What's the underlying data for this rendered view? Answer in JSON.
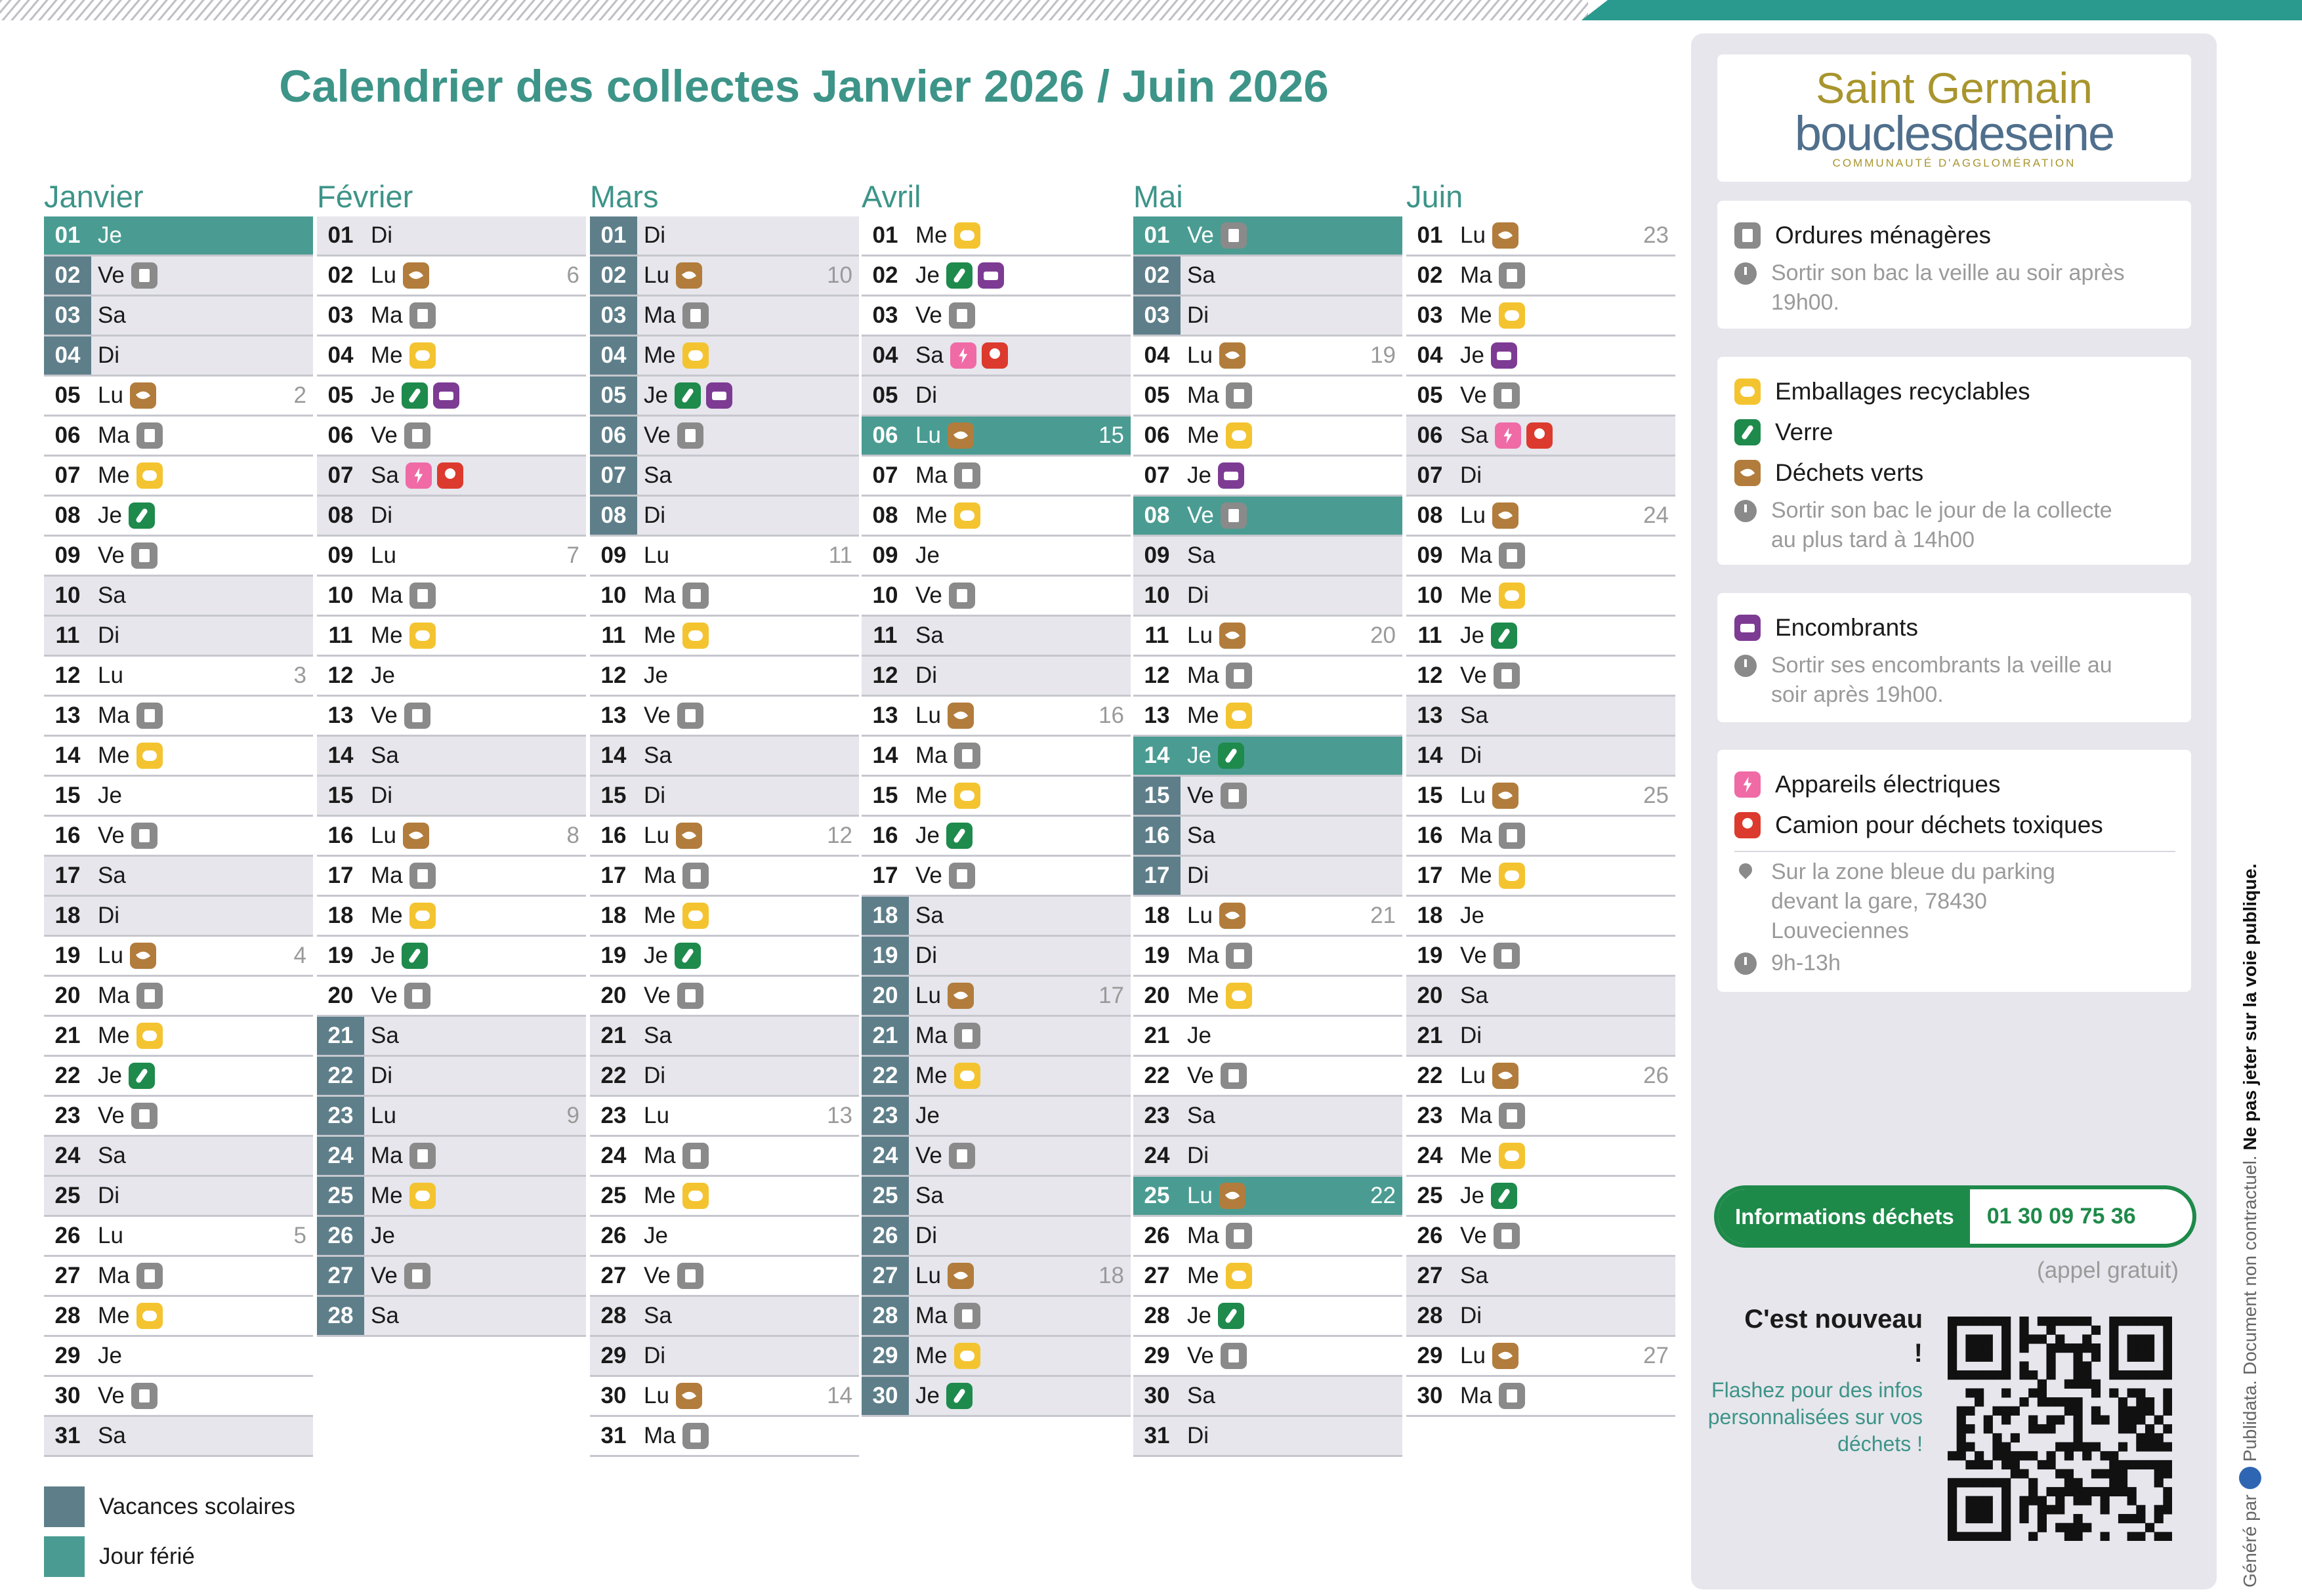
{
  "title": "Calendrier des collectes Janvier 2026 / Juin 2026",
  "months": [
    {
      "name": "Janvier",
      "days": [
        [
          "01",
          "Je"
        ],
        [
          "02",
          "Ve"
        ],
        [
          "03",
          "Sa"
        ],
        [
          "04",
          "Di"
        ],
        [
          "05",
          "Lu",
          "2"
        ],
        [
          "06",
          "Ma"
        ],
        [
          "07",
          "Me"
        ],
        [
          "08",
          "Je"
        ],
        [
          "09",
          "Ve"
        ],
        [
          "10",
          "Sa"
        ],
        [
          "11",
          "Di"
        ],
        [
          "12",
          "Lu",
          "3"
        ],
        [
          "13",
          "Ma"
        ],
        [
          "14",
          "Me"
        ],
        [
          "15",
          "Je"
        ],
        [
          "16",
          "Ve"
        ],
        [
          "17",
          "Sa"
        ],
        [
          "18",
          "Di"
        ],
        [
          "19",
          "Lu",
          "4"
        ],
        [
          "20",
          "Ma"
        ],
        [
          "21",
          "Me"
        ],
        [
          "22",
          "Je"
        ],
        [
          "23",
          "Ve"
        ],
        [
          "24",
          "Sa"
        ],
        [
          "25",
          "Di"
        ],
        [
          "26",
          "Lu",
          "5"
        ],
        [
          "27",
          "Ma"
        ],
        [
          "28",
          "Me"
        ],
        [
          "29",
          "Je"
        ],
        [
          "30",
          "Ve"
        ],
        [
          "31",
          "Sa"
        ]
      ]
    },
    {
      "name": "Février",
      "days": [
        [
          "01",
          "Di"
        ],
        [
          "02",
          "Lu",
          "6"
        ],
        [
          "03",
          "Ma"
        ],
        [
          "04",
          "Me"
        ],
        [
          "05",
          "Je"
        ],
        [
          "06",
          "Ve"
        ],
        [
          "07",
          "Sa"
        ],
        [
          "08",
          "Di"
        ],
        [
          "09",
          "Lu",
          "7"
        ],
        [
          "10",
          "Ma"
        ],
        [
          "11",
          "Me"
        ],
        [
          "12",
          "Je"
        ],
        [
          "13",
          "Ve"
        ],
        [
          "14",
          "Sa"
        ],
        [
          "15",
          "Di"
        ],
        [
          "16",
          "Lu",
          "8"
        ],
        [
          "17",
          "Ma"
        ],
        [
          "18",
          "Me"
        ],
        [
          "19",
          "Je"
        ],
        [
          "20",
          "Ve"
        ],
        [
          "21",
          "Sa"
        ],
        [
          "22",
          "Di"
        ],
        [
          "23",
          "Lu",
          "9"
        ],
        [
          "24",
          "Ma"
        ],
        [
          "25",
          "Me"
        ],
        [
          "26",
          "Je"
        ],
        [
          "27",
          "Ve"
        ],
        [
          "28",
          "Sa"
        ]
      ]
    },
    {
      "name": "Mars",
      "days": [
        [
          "01",
          "Di"
        ],
        [
          "02",
          "Lu",
          "10"
        ],
        [
          "03",
          "Ma"
        ],
        [
          "04",
          "Me"
        ],
        [
          "05",
          "Je"
        ],
        [
          "06",
          "Ve"
        ],
        [
          "07",
          "Sa"
        ],
        [
          "08",
          "Di"
        ],
        [
          "09",
          "Lu",
          "11"
        ],
        [
          "10",
          "Ma"
        ],
        [
          "11",
          "Me"
        ],
        [
          "12",
          "Je"
        ],
        [
          "13",
          "Ve"
        ],
        [
          "14",
          "Sa"
        ],
        [
          "15",
          "Di"
        ],
        [
          "16",
          "Lu",
          "12"
        ],
        [
          "17",
          "Ma"
        ],
        [
          "18",
          "Me"
        ],
        [
          "19",
          "Je"
        ],
        [
          "20",
          "Ve"
        ],
        [
          "21",
          "Sa"
        ],
        [
          "22",
          "Di"
        ],
        [
          "23",
          "Lu",
          "13"
        ],
        [
          "24",
          "Ma"
        ],
        [
          "25",
          "Me"
        ],
        [
          "26",
          "Je"
        ],
        [
          "27",
          "Ve"
        ],
        [
          "28",
          "Sa"
        ],
        [
          "29",
          "Di"
        ],
        [
          "30",
          "Lu",
          "14"
        ],
        [
          "31",
          "Ma"
        ]
      ]
    },
    {
      "name": "Avril",
      "days": [
        [
          "01",
          "Me"
        ],
        [
          "02",
          "Je"
        ],
        [
          "03",
          "Ve"
        ],
        [
          "04",
          "Sa"
        ],
        [
          "05",
          "Di"
        ],
        [
          "06",
          "Lu",
          "15"
        ],
        [
          "07",
          "Ma"
        ],
        [
          "08",
          "Me"
        ],
        [
          "09",
          "Je"
        ],
        [
          "10",
          "Ve"
        ],
        [
          "11",
          "Sa"
        ],
        [
          "12",
          "Di"
        ],
        [
          "13",
          "Lu",
          "16"
        ],
        [
          "14",
          "Ma"
        ],
        [
          "15",
          "Me"
        ],
        [
          "16",
          "Je"
        ],
        [
          "17",
          "Ve"
        ],
        [
          "18",
          "Sa"
        ],
        [
          "19",
          "Di"
        ],
        [
          "20",
          "Lu",
          "17"
        ],
        [
          "21",
          "Ma"
        ],
        [
          "22",
          "Me"
        ],
        [
          "23",
          "Je"
        ],
        [
          "24",
          "Ve"
        ],
        [
          "25",
          "Sa"
        ],
        [
          "26",
          "Di"
        ],
        [
          "27",
          "Lu",
          "18"
        ],
        [
          "28",
          "Ma"
        ],
        [
          "29",
          "Me"
        ],
        [
          "30",
          "Je"
        ]
      ]
    },
    {
      "name": "Mai",
      "days": [
        [
          "01",
          "Ve"
        ],
        [
          "02",
          "Sa"
        ],
        [
          "03",
          "Di"
        ],
        [
          "04",
          "Lu",
          "19"
        ],
        [
          "05",
          "Ma"
        ],
        [
          "06",
          "Me"
        ],
        [
          "07",
          "Je"
        ],
        [
          "08",
          "Ve"
        ],
        [
          "09",
          "Sa"
        ],
        [
          "10",
          "Di"
        ],
        [
          "11",
          "Lu",
          "20"
        ],
        [
          "12",
          "Ma"
        ],
        [
          "13",
          "Me"
        ],
        [
          "14",
          "Je"
        ],
        [
          "15",
          "Ve"
        ],
        [
          "16",
          "Sa"
        ],
        [
          "17",
          "Di"
        ],
        [
          "18",
          "Lu",
          "21"
        ],
        [
          "19",
          "Ma"
        ],
        [
          "20",
          "Me"
        ],
        [
          "21",
          "Je"
        ],
        [
          "22",
          "Ve"
        ],
        [
          "23",
          "Sa"
        ],
        [
          "24",
          "Di"
        ],
        [
          "25",
          "Lu",
          "22"
        ],
        [
          "26",
          "Ma"
        ],
        [
          "27",
          "Me"
        ],
        [
          "28",
          "Je"
        ],
        [
          "29",
          "Ve"
        ],
        [
          "30",
          "Sa"
        ],
        [
          "31",
          "Di"
        ]
      ]
    },
    {
      "name": "Juin",
      "days": [
        [
          "01",
          "Lu",
          "23"
        ],
        [
          "02",
          "Ma"
        ],
        [
          "03",
          "Me"
        ],
        [
          "04",
          "Je"
        ],
        [
          "05",
          "Ve"
        ],
        [
          "06",
          "Sa"
        ],
        [
          "07",
          "Di"
        ],
        [
          "08",
          "Lu",
          "24"
        ],
        [
          "09",
          "Ma"
        ],
        [
          "10",
          "Me"
        ],
        [
          "11",
          "Je"
        ],
        [
          "12",
          "Ve"
        ],
        [
          "13",
          "Sa"
        ],
        [
          "14",
          "Di"
        ],
        [
          "15",
          "Lu",
          "25"
        ],
        [
          "16",
          "Ma"
        ],
        [
          "17",
          "Me"
        ],
        [
          "18",
          "Je"
        ],
        [
          "19",
          "Ve"
        ],
        [
          "20",
          "Sa"
        ],
        [
          "21",
          "Di"
        ],
        [
          "22",
          "Lu",
          "26"
        ],
        [
          "23",
          "Ma"
        ],
        [
          "24",
          "Me"
        ],
        [
          "25",
          "Je"
        ],
        [
          "26",
          "Ve"
        ],
        [
          "27",
          "Sa"
        ],
        [
          "28",
          "Di"
        ],
        [
          "29",
          "Lu",
          "27"
        ],
        [
          "30",
          "Ma"
        ]
      ]
    }
  ],
  "footer_legend": [
    "Vacances scolaires",
    "Jour férié"
  ],
  "panel": {
    "logo": {
      "top": "Saint Germain",
      "name": "bouclesdeseine",
      "sub": "COMMUNAUTÉ D'AGGLOMÉRATION"
    },
    "cards": [
      {
        "items": [
          "Ordures ménagères"
        ],
        "notes": [
          "Sortir son bac la veille au soir après 19h00."
        ]
      },
      {
        "items": [
          "Emballages recyclables",
          "Verre",
          "Déchets verts"
        ],
        "notes": [
          "Sortir son bac le jour de la collecte au plus tard à 14h00"
        ]
      },
      {
        "items": [
          "Encombrants"
        ],
        "notes": [
          "Sortir ses encombrants la veille au soir après 19h00."
        ]
      },
      {
        "items": [
          "Appareils électriques",
          "Camion pour déchets toxiques"
        ],
        "notes": [
          "Sur la zone bleue du parking devant la gare, 78430 Louveciennes",
          "9h-13h"
        ]
      }
    ],
    "hotline": {
      "label": "Informations déchets",
      "phone": "01 30 09 75 36",
      "note": "(appel gratuit)"
    },
    "qr": {
      "title": "C'est nouveau !",
      "text": "Flashez pour des infos personnalisées sur vos déchets !"
    }
  },
  "side_note": {
    "prefix": "Généré par",
    "brand": "Publidata.",
    "text": "Document non contractuel.",
    "bold": "Ne pas jeter sur la voie publique."
  }
}
